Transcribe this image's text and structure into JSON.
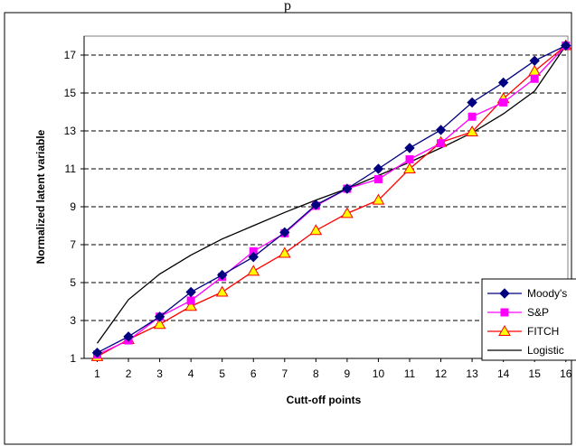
{
  "chart_data": {
    "type": "line",
    "title": "p",
    "xlabel": "Cutt-off points",
    "ylabel": "Normalized latent variable",
    "x": [
      1,
      2,
      3,
      4,
      5,
      6,
      7,
      8,
      9,
      10,
      11,
      12,
      13,
      14,
      15,
      16
    ],
    "x_ticks": [
      "1",
      "2",
      "3",
      "4",
      "5",
      "6",
      "7",
      "8",
      "9",
      "10",
      "11",
      "12",
      "13",
      "14",
      "15",
      "16"
    ],
    "y_ticks": [
      "1",
      "3",
      "5",
      "7",
      "9",
      "11",
      "13",
      "15",
      "17"
    ],
    "ylim": [
      1,
      18
    ],
    "grid": "horizontal dashed",
    "legend_position": "bottom-right",
    "series": [
      {
        "name": "Moody's",
        "color": "#000080",
        "marker": "diamond",
        "values": [
          1.3,
          2.15,
          3.2,
          4.5,
          5.4,
          6.35,
          7.65,
          9.1,
          9.95,
          11.0,
          12.1,
          13.05,
          14.5,
          15.55,
          16.7,
          17.5
        ]
      },
      {
        "name": "S&P",
        "color": "#ff00ff",
        "marker": "square",
        "values": [
          1.2,
          1.95,
          3.2,
          4.05,
          5.3,
          6.65,
          7.6,
          9.05,
          9.95,
          10.45,
          11.5,
          12.35,
          13.75,
          14.5,
          15.75,
          17.5
        ]
      },
      {
        "name": "FITCH",
        "color": "#ff0000",
        "marker": "triangle",
        "values": [
          1.1,
          2.0,
          2.8,
          3.75,
          4.5,
          5.6,
          6.55,
          7.75,
          8.65,
          9.35,
          11.0,
          12.4,
          12.95,
          14.7,
          16.15,
          17.5
        ]
      },
      {
        "name": "Logistic",
        "color": "#000000",
        "marker": "none",
        "values": [
          1.8,
          4.1,
          5.45,
          6.45,
          7.3,
          8.0,
          8.7,
          9.35,
          9.95,
          10.65,
          11.35,
          12.1,
          12.9,
          13.9,
          15.1,
          17.5
        ]
      }
    ]
  }
}
